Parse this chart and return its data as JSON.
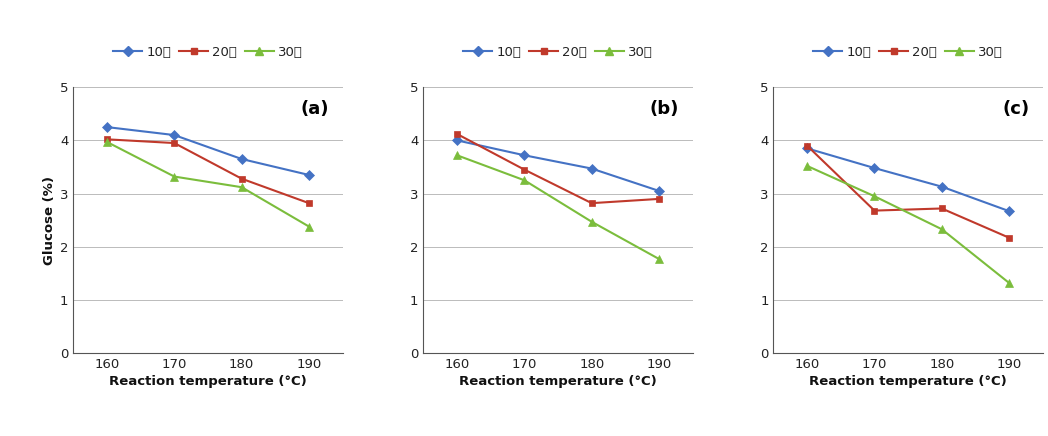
{
  "x": [
    160,
    170,
    180,
    190
  ],
  "panels": [
    {
      "label": "(a)",
      "series": {
        "10분": [
          4.25,
          4.1,
          3.65,
          3.35
        ],
        "20분": [
          4.02,
          3.95,
          3.28,
          2.82
        ],
        "30분": [
          3.97,
          3.32,
          3.12,
          2.38
        ]
      }
    },
    {
      "label": "(b)",
      "series": {
        "10분": [
          4.0,
          3.72,
          3.47,
          3.05
        ],
        "20분": [
          4.12,
          3.45,
          2.82,
          2.9
        ],
        "30분": [
          3.72,
          3.25,
          2.47,
          1.77
        ]
      }
    },
    {
      "label": "(c)",
      "series": {
        "10분": [
          3.85,
          3.48,
          3.13,
          2.67
        ],
        "20분": [
          3.9,
          2.68,
          2.72,
          2.17
        ],
        "30분": [
          3.52,
          2.95,
          2.33,
          1.32
        ]
      }
    }
  ],
  "series_styles": {
    "10분": {
      "color": "#4472C4",
      "marker": "D",
      "markersize": 5
    },
    "20분": {
      "color": "#C0392B",
      "marker": "s",
      "markersize": 5
    },
    "30분": {
      "color": "#7BBD3C",
      "marker": "^",
      "markersize": 6
    }
  },
  "ylim": [
    0,
    5
  ],
  "yticks": [
    0,
    1,
    2,
    3,
    4,
    5
  ],
  "xlabel": "Reaction temperature (°C)",
  "ylabel": "Glucose (%)",
  "xticks": [
    160,
    170,
    180,
    190
  ],
  "legend_labels": [
    "10분",
    "20분",
    "30분"
  ],
  "background_color": "#ffffff"
}
